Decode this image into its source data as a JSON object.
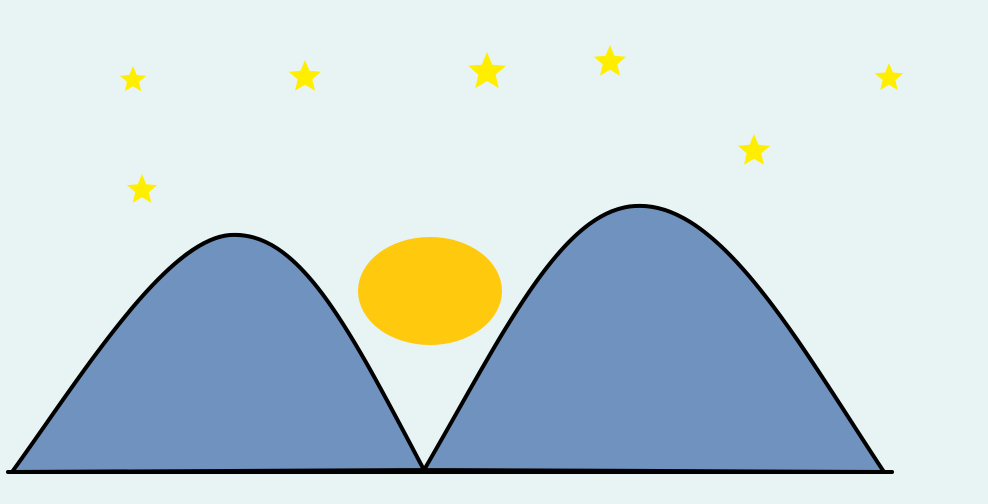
{
  "colors": {
    "sky": "#e8f4f4",
    "star": "#ffee00",
    "sun": "#ffc90e",
    "mountain": "#7092be",
    "outline": "#000000"
  },
  "scene": {
    "star_count": 7,
    "mountain_count": 2,
    "sun_count": 1
  }
}
